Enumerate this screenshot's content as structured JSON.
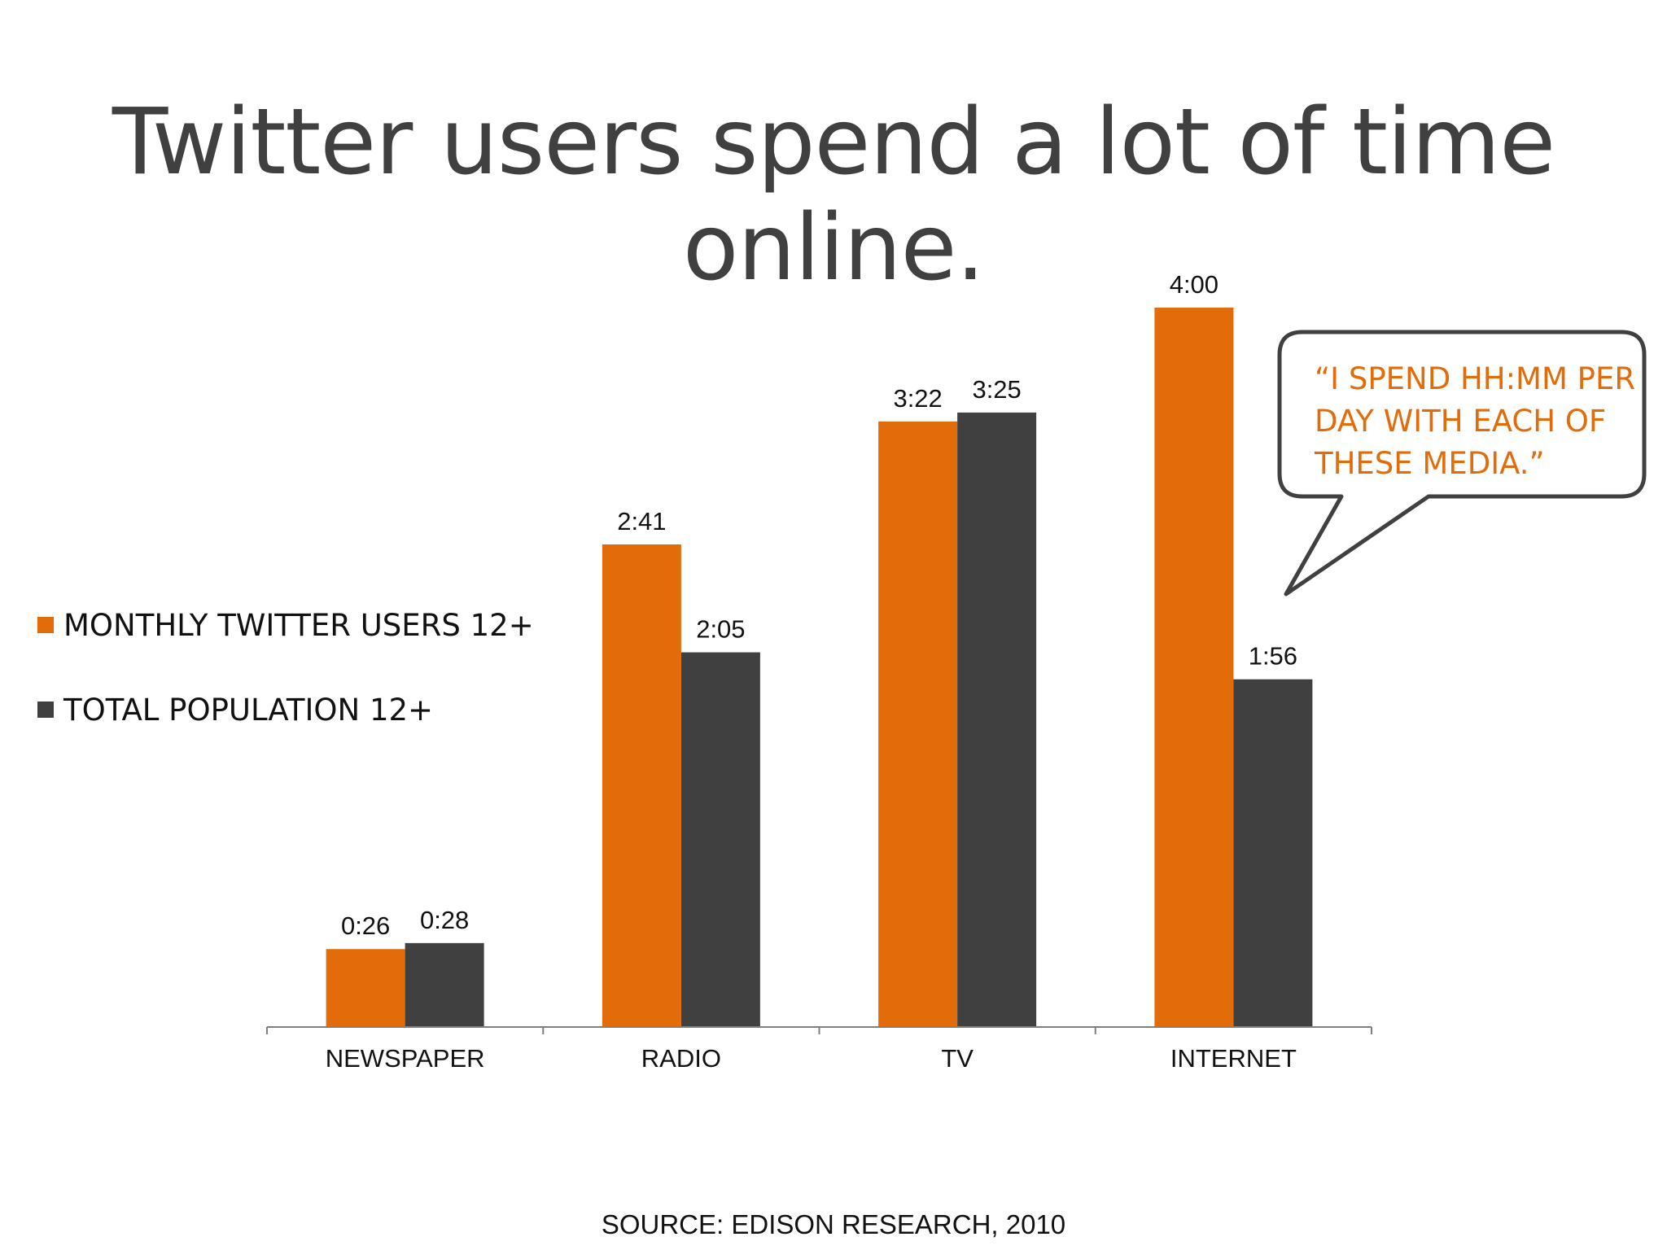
{
  "title": "Twitter users spend a lot of time online.",
  "callout": "“I SPEND HH:MM PER DAY WITH EACH OF THESE MEDIA.”",
  "source": "SOURCE: EDISON RESEARCH,  2010",
  "colors": {
    "twitter": "#E36C0A",
    "population": "#404040",
    "text": "#404040"
  },
  "chart_data": {
    "type": "bar",
    "categories": [
      "NEWSPAPER",
      "RADIO",
      "TV",
      "INTERNET"
    ],
    "series": [
      {
        "name": "MONTHLY TWITTER USERS 12+",
        "values": [
          26,
          161,
          202,
          240
        ],
        "labels": [
          "0:26",
          "2:41",
          "3:22",
          "4:00"
        ]
      },
      {
        "name": "TOTAL POPULATION 12+",
        "values": [
          28,
          125,
          205,
          116
        ],
        "labels": [
          "0:28",
          "2:05",
          "3:25",
          "1:56"
        ]
      }
    ],
    "value_unit": "minutes per day",
    "ylim": [
      0,
      240
    ],
    "grid": false,
    "legend": "left"
  }
}
